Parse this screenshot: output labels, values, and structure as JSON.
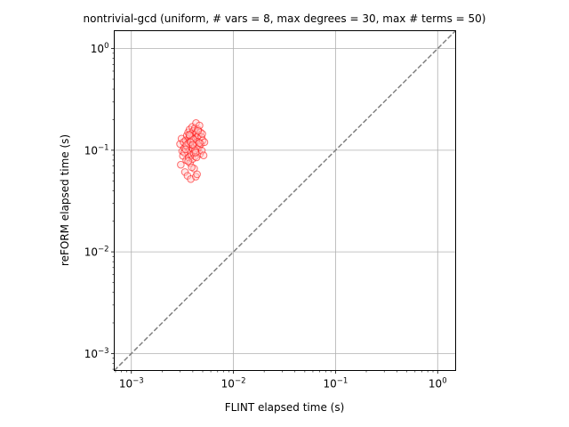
{
  "chart_data": {
    "type": "scatter",
    "title": "nontrivial-gcd (uniform, # vars = 8, max degrees = 30, max # terms = 50)",
    "xlabel": "FLINT elapsed time (s)",
    "ylabel": "reFORM elapsed time (s)",
    "xscale": "log",
    "yscale": "log",
    "xlim": [
      0.00068,
      1.5
    ],
    "ylim": [
      0.00068,
      1.5
    ],
    "grid": true,
    "reference_line": {
      "style": "dashed",
      "color": "#808080",
      "slope": 1
    },
    "x_ticks": [
      {
        "value": 0.001,
        "base": "10",
        "exp": "−3"
      },
      {
        "value": 0.01,
        "base": "10",
        "exp": "−2"
      },
      {
        "value": 0.1,
        "base": "10",
        "exp": "−1"
      },
      {
        "value": 1,
        "base": "10",
        "exp": "0"
      }
    ],
    "y_ticks": [
      {
        "value": 0.001,
        "base": "10",
        "exp": "−3"
      },
      {
        "value": 0.01,
        "base": "10",
        "exp": "−2"
      },
      {
        "value": 0.1,
        "base": "10",
        "exp": "−1"
      },
      {
        "value": 1,
        "base": "10",
        "exp": "0"
      }
    ],
    "marker": {
      "edge_color": "#ff0000",
      "face_color": "#ffcccc",
      "alpha": 0.45
    },
    "points": [
      {
        "x": 0.003,
        "y": 0.115
      },
      {
        "x": 0.00305,
        "y": 0.072
      },
      {
        "x": 0.0031,
        "y": 0.13
      },
      {
        "x": 0.00315,
        "y": 0.098
      },
      {
        "x": 0.0032,
        "y": 0.088
      },
      {
        "x": 0.00325,
        "y": 0.12
      },
      {
        "x": 0.0033,
        "y": 0.105
      },
      {
        "x": 0.00335,
        "y": 0.061
      },
      {
        "x": 0.0034,
        "y": 0.125
      },
      {
        "x": 0.00345,
        "y": 0.08
      },
      {
        "x": 0.0035,
        "y": 0.14
      },
      {
        "x": 0.00352,
        "y": 0.11
      },
      {
        "x": 0.00355,
        "y": 0.056
      },
      {
        "x": 0.00358,
        "y": 0.095
      },
      {
        "x": 0.0036,
        "y": 0.15
      },
      {
        "x": 0.00362,
        "y": 0.118
      },
      {
        "x": 0.00365,
        "y": 0.085
      },
      {
        "x": 0.00368,
        "y": 0.132
      },
      {
        "x": 0.0037,
        "y": 0.1
      },
      {
        "x": 0.00372,
        "y": 0.16
      },
      {
        "x": 0.00375,
        "y": 0.075
      },
      {
        "x": 0.00378,
        "y": 0.122
      },
      {
        "x": 0.0038,
        "y": 0.108
      },
      {
        "x": 0.00382,
        "y": 0.052
      },
      {
        "x": 0.00385,
        "y": 0.145
      },
      {
        "x": 0.00388,
        "y": 0.09
      },
      {
        "x": 0.0039,
        "y": 0.128
      },
      {
        "x": 0.00392,
        "y": 0.113
      },
      {
        "x": 0.00395,
        "y": 0.17
      },
      {
        "x": 0.00398,
        "y": 0.082
      },
      {
        "x": 0.004,
        "y": 0.136
      },
      {
        "x": 0.00402,
        "y": 0.102
      },
      {
        "x": 0.00405,
        "y": 0.155
      },
      {
        "x": 0.00408,
        "y": 0.093
      },
      {
        "x": 0.0041,
        "y": 0.124
      },
      {
        "x": 0.00412,
        "y": 0.066
      },
      {
        "x": 0.00415,
        "y": 0.142
      },
      {
        "x": 0.00418,
        "y": 0.11
      },
      {
        "x": 0.0042,
        "y": 0.165
      },
      {
        "x": 0.00422,
        "y": 0.087
      },
      {
        "x": 0.00425,
        "y": 0.13
      },
      {
        "x": 0.00428,
        "y": 0.055
      },
      {
        "x": 0.0043,
        "y": 0.185
      },
      {
        "x": 0.00432,
        "y": 0.118
      },
      {
        "x": 0.00435,
        "y": 0.148
      },
      {
        "x": 0.00438,
        "y": 0.096
      },
      {
        "x": 0.0044,
        "y": 0.058
      },
      {
        "x": 0.00442,
        "y": 0.135
      },
      {
        "x": 0.00445,
        "y": 0.104
      },
      {
        "x": 0.00448,
        "y": 0.16
      },
      {
        "x": 0.0045,
        "y": 0.122
      },
      {
        "x": 0.00455,
        "y": 0.14
      },
      {
        "x": 0.0046,
        "y": 0.108
      },
      {
        "x": 0.00465,
        "y": 0.175
      },
      {
        "x": 0.0047,
        "y": 0.092
      },
      {
        "x": 0.00475,
        "y": 0.15
      },
      {
        "x": 0.0048,
        "y": 0.115
      },
      {
        "x": 0.00485,
        "y": 0.135
      },
      {
        "x": 0.0049,
        "y": 0.099
      },
      {
        "x": 0.00495,
        "y": 0.145
      },
      {
        "x": 0.005,
        "y": 0.125
      },
      {
        "x": 0.0051,
        "y": 0.089
      },
      {
        "x": 0.0052,
        "y": 0.12
      },
      {
        "x": 0.0033,
        "y": 0.095
      },
      {
        "x": 0.00345,
        "y": 0.112
      },
      {
        "x": 0.0036,
        "y": 0.078
      },
      {
        "x": 0.00375,
        "y": 0.138
      },
      {
        "x": 0.0039,
        "y": 0.068
      },
      {
        "x": 0.00405,
        "y": 0.128
      },
      {
        "x": 0.0042,
        "y": 0.1
      },
      {
        "x": 0.00435,
        "y": 0.085
      },
      {
        "x": 0.0045,
        "y": 0.155
      },
      {
        "x": 0.00465,
        "y": 0.118
      },
      {
        "x": 0.0038,
        "y": 0.12
      },
      {
        "x": 0.004,
        "y": 0.113
      },
      {
        "x": 0.0037,
        "y": 0.142
      },
      {
        "x": 0.0034,
        "y": 0.102
      },
      {
        "x": 0.00425,
        "y": 0.095
      }
    ]
  }
}
